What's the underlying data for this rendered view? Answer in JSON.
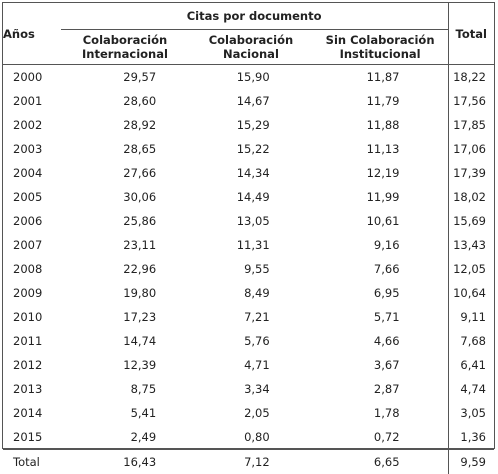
{
  "header": {
    "anos": "Años",
    "group": "Citas por documento",
    "col_int_1": "Colaboración",
    "col_int_2": "Internacional",
    "col_nac_1": "Colaboración",
    "col_nac_2": "Nacional",
    "col_sin_1": "Sin Colaboración",
    "col_sin_2": "Institucional",
    "total": "Total"
  },
  "rows": [
    {
      "year": "2000",
      "int": "29,57",
      "nac": "15,90",
      "sin": "11,87",
      "total": "18,22"
    },
    {
      "year": "2001",
      "int": "28,60",
      "nac": "14,67",
      "sin": "11,79",
      "total": "17,56"
    },
    {
      "year": "2002",
      "int": "28,92",
      "nac": "15,29",
      "sin": "11,88",
      "total": "17,85"
    },
    {
      "year": "2003",
      "int": "28,65",
      "nac": "15,22",
      "sin": "11,13",
      "total": "17,06"
    },
    {
      "year": "2004",
      "int": "27,66",
      "nac": "14,34",
      "sin": "12,19",
      "total": "17,39"
    },
    {
      "year": "2005",
      "int": "30,06",
      "nac": "14,49",
      "sin": "11,99",
      "total": "18,02"
    },
    {
      "year": "2006",
      "int": "25,86",
      "nac": "13,05",
      "sin": "10,61",
      "total": "15,69"
    },
    {
      "year": "2007",
      "int": "23,11",
      "nac": "11,31",
      "sin": "9,16",
      "total": "13,43"
    },
    {
      "year": "2008",
      "int": "22,96",
      "nac": "9,55",
      "sin": "7,66",
      "total": "12,05"
    },
    {
      "year": "2009",
      "int": "19,80",
      "nac": "8,49",
      "sin": "6,95",
      "total": "10,64"
    },
    {
      "year": "2010",
      "int": "17,23",
      "nac": "7,21",
      "sin": "5,71",
      "total": "9,11"
    },
    {
      "year": "2011",
      "int": "14,74",
      "nac": "5,76",
      "sin": "4,66",
      "total": "7,68"
    },
    {
      "year": "2012",
      "int": "12,39",
      "nac": "4,71",
      "sin": "3,67",
      "total": "6,41"
    },
    {
      "year": "2013",
      "int": "8,75",
      "nac": "3,34",
      "sin": "2,87",
      "total": "4,74"
    },
    {
      "year": "2014",
      "int": "5,41",
      "nac": "2,05",
      "sin": "1,78",
      "total": "3,05"
    },
    {
      "year": "2015",
      "int": "2,49",
      "nac": "0,80",
      "sin": "0,72",
      "total": "1,36"
    }
  ],
  "total_row": {
    "year": "Total",
    "int": "16,43",
    "nac": "7,12",
    "sin": "6,65",
    "total": "9,59"
  }
}
